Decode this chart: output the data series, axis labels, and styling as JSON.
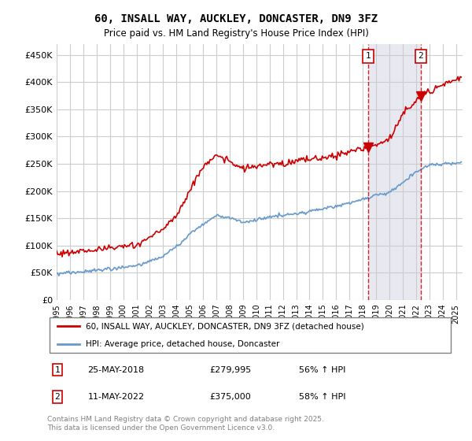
{
  "title": "60, INSALL WAY, AUCKLEY, DONCASTER, DN9 3FZ",
  "subtitle": "Price paid vs. HM Land Registry's House Price Index (HPI)",
  "ylabel_ticks": [
    "£0",
    "£50K",
    "£100K",
    "£150K",
    "£200K",
    "£250K",
    "£300K",
    "£350K",
    "£400K",
    "£450K"
  ],
  "ytick_values": [
    0,
    50000,
    100000,
    150000,
    200000,
    250000,
    300000,
    350000,
    400000,
    450000
  ],
  "ylim": [
    0,
    470000
  ],
  "xlim": [
    1995,
    2025.5
  ],
  "xtick_years": [
    1995,
    1996,
    1997,
    1998,
    1999,
    2000,
    2001,
    2002,
    2003,
    2004,
    2005,
    2006,
    2007,
    2008,
    2009,
    2010,
    2011,
    2012,
    2013,
    2014,
    2015,
    2016,
    2017,
    2018,
    2019,
    2020,
    2021,
    2022,
    2023,
    2024,
    2025
  ],
  "red_color": "#cc0000",
  "blue_color": "#6699cc",
  "marker1_x": 2018.4,
  "marker1_y": 279995,
  "marker2_x": 2022.36,
  "marker2_y": 375000,
  "legend_entries": [
    "60, INSALL WAY, AUCKLEY, DONCASTER, DN9 3FZ (detached house)",
    "HPI: Average price, detached house, Doncaster"
  ],
  "annotation1": [
    "1",
    "25-MAY-2018",
    "£279,995",
    "56% ↑ HPI"
  ],
  "annotation2": [
    "2",
    "11-MAY-2022",
    "£375,000",
    "58% ↑ HPI"
  ],
  "footer": "Contains HM Land Registry data © Crown copyright and database right 2025.\nThis data is licensed under the Open Government Licence v3.0.",
  "plot_bg_color": "#ffffff",
  "grid_color": "#cccccc",
  "shade_color": "#e8e8f0",
  "red_key_x": [
    1995,
    1997,
    1999,
    2001,
    2003,
    2004,
    2005,
    2006,
    2007,
    2008,
    2009,
    2010,
    2011,
    2012,
    2013,
    2014,
    2015,
    2016,
    2017,
    2018.4,
    2019,
    2020,
    2021,
    2022.36,
    2023,
    2024,
    2025.4
  ],
  "red_key_y": [
    85000,
    90000,
    95000,
    100000,
    130000,
    155000,
    200000,
    245000,
    265000,
    255000,
    240000,
    245000,
    248000,
    250000,
    255000,
    258000,
    262000,
    265000,
    272000,
    279995,
    285000,
    295000,
    340000,
    375000,
    385000,
    395000,
    410000
  ],
  "blue_key_x": [
    1995,
    1997,
    1999,
    2001,
    2003,
    2004,
    2005,
    2006,
    2007,
    2008,
    2009,
    2010,
    2011,
    2012,
    2013,
    2014,
    2015,
    2016,
    2017,
    2018,
    2019,
    2020,
    2021,
    2022,
    2023,
    2024,
    2025.4
  ],
  "blue_key_y": [
    48000,
    52000,
    57000,
    62000,
    80000,
    98000,
    120000,
    140000,
    155000,
    150000,
    142000,
    148000,
    152000,
    155000,
    158000,
    162000,
    168000,
    172000,
    178000,
    185000,
    192000,
    198000,
    215000,
    235000,
    248000,
    250000,
    252000
  ]
}
